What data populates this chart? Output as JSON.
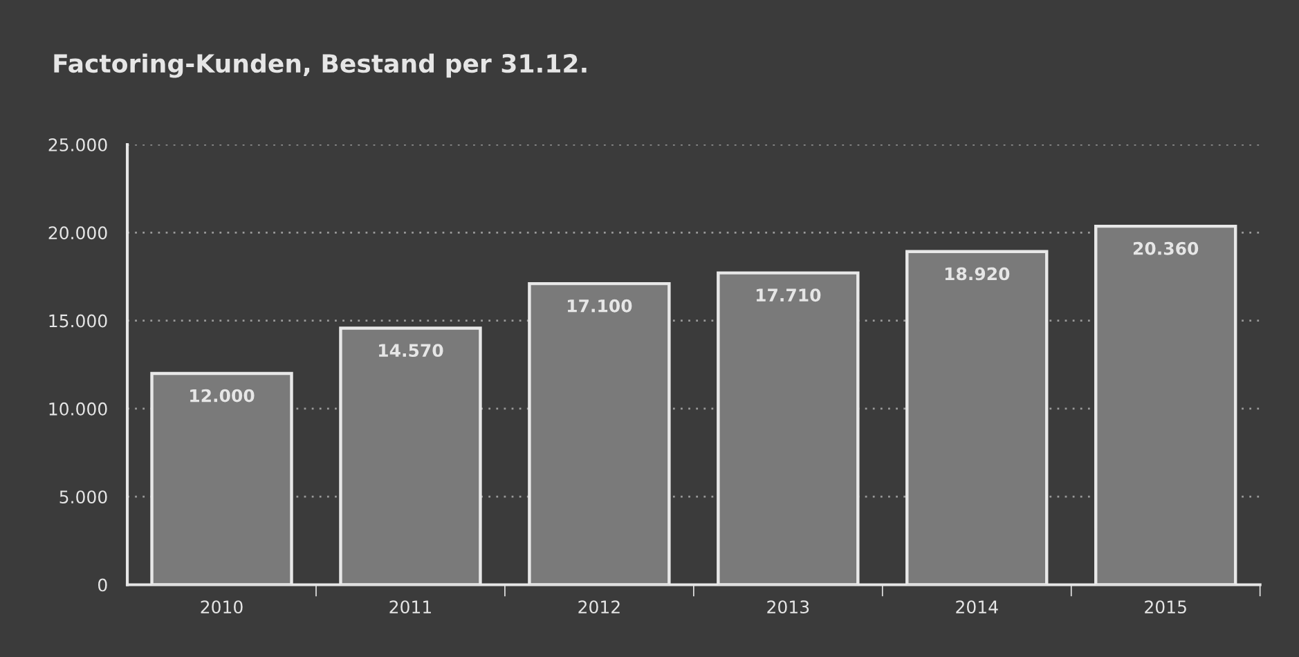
{
  "chart_data": {
    "type": "bar",
    "title": "Factoring-Kunden, Bestand per 31.12.",
    "categories": [
      "2010",
      "2011",
      "2012",
      "2013",
      "2014",
      "2015"
    ],
    "values": [
      12000,
      14570,
      17100,
      17710,
      18920,
      20360
    ],
    "value_labels": [
      "12.000",
      "14.570",
      "17.100",
      "17.710",
      "18.920",
      "20.360"
    ],
    "color": "#7a7a7a",
    "ylim": [
      0,
      25000
    ],
    "yticks": [
      {
        "value": 0,
        "label": "0"
      },
      {
        "value": 5000,
        "label": "5.000"
      },
      {
        "value": 10000,
        "label": "10.000"
      },
      {
        "value": 15000,
        "label": "15.000"
      },
      {
        "value": 20000,
        "label": "20.000"
      },
      {
        "value": 25000,
        "label": "25.000"
      }
    ],
    "grid": "y"
  }
}
